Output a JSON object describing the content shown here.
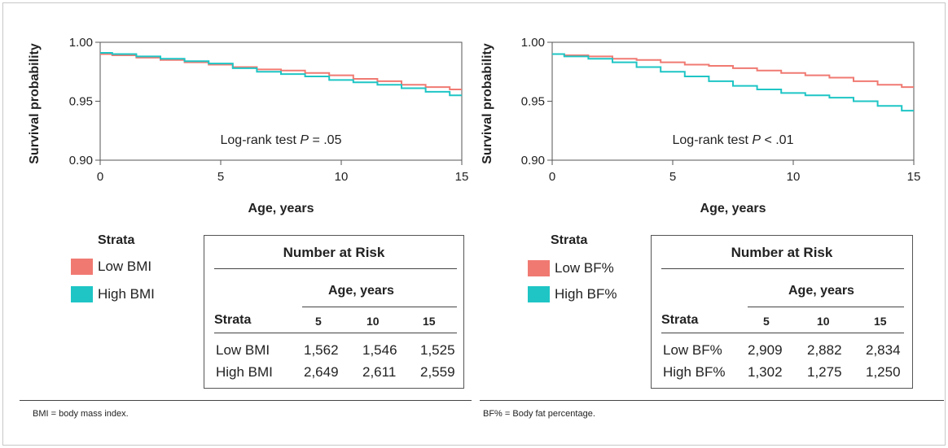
{
  "chart_data": [
    {
      "type": "line",
      "ylabel": "Survival probability",
      "xlabel": "Age, years",
      "xlim": [
        0,
        15
      ],
      "ylim": [
        0.9,
        1.0
      ],
      "xticks": [
        "0",
        "5",
        "10",
        "15"
      ],
      "yticks": [
        "0.90",
        "0.95",
        "1.00"
      ],
      "annotation": "Log-rank test P = .05",
      "series": [
        {
          "name": "Low BMI",
          "color": "#f07a72",
          "x": [
            0,
            1,
            2,
            3,
            4,
            5,
            6,
            7,
            8,
            9,
            10,
            11,
            12,
            13,
            14,
            15
          ],
          "y": [
            0.99,
            0.989,
            0.987,
            0.985,
            0.983,
            0.981,
            0.979,
            0.977,
            0.976,
            0.974,
            0.972,
            0.969,
            0.967,
            0.964,
            0.962,
            0.96
          ]
        },
        {
          "name": "High BMI",
          "color": "#1fc5c5",
          "x": [
            0,
            1,
            2,
            3,
            4,
            5,
            6,
            7,
            8,
            9,
            10,
            11,
            12,
            13,
            14,
            15
          ],
          "y": [
            0.991,
            0.99,
            0.988,
            0.986,
            0.984,
            0.982,
            0.978,
            0.975,
            0.973,
            0.971,
            0.968,
            0.966,
            0.964,
            0.961,
            0.958,
            0.955
          ]
        }
      ]
    },
    {
      "type": "line",
      "ylabel": "Survival probability",
      "xlabel": "Age, years",
      "xlim": [
        0,
        15
      ],
      "ylim": [
        0.9,
        1.0
      ],
      "xticks": [
        "0",
        "5",
        "10",
        "15"
      ],
      "yticks": [
        "0.90",
        "0.95",
        "1.00"
      ],
      "annotation": "Log-rank test P < .01",
      "series": [
        {
          "name": "Low BF%",
          "color": "#f07a72",
          "x": [
            0,
            1,
            2,
            3,
            4,
            5,
            6,
            7,
            8,
            9,
            10,
            11,
            12,
            13,
            14,
            15
          ],
          "y": [
            0.99,
            0.989,
            0.988,
            0.986,
            0.985,
            0.983,
            0.981,
            0.98,
            0.978,
            0.976,
            0.974,
            0.972,
            0.97,
            0.967,
            0.964,
            0.962
          ]
        },
        {
          "name": "High BF%",
          "color": "#1fc5c5",
          "x": [
            0,
            1,
            2,
            3,
            4,
            5,
            6,
            7,
            8,
            9,
            10,
            11,
            12,
            13,
            14,
            15
          ],
          "y": [
            0.99,
            0.988,
            0.986,
            0.983,
            0.979,
            0.975,
            0.971,
            0.967,
            0.963,
            0.96,
            0.957,
            0.955,
            0.953,
            0.95,
            0.946,
            0.942
          ]
        }
      ]
    }
  ],
  "panels": [
    {
      "legend": {
        "title": "Strata",
        "items": [
          "Low BMI",
          "High BMI"
        ]
      },
      "risk_table": {
        "title": "Number at Risk",
        "age_header": "Age, years",
        "strata_header": "Strata",
        "columns": [
          "5",
          "10",
          "15"
        ],
        "rows": [
          {
            "label": "Low BMI",
            "values": [
              "1,562",
              "1,546",
              "1,525"
            ]
          },
          {
            "label": "High BMI",
            "values": [
              "2,649",
              "2,611",
              "2,559"
            ]
          }
        ]
      },
      "footnote": "BMI = body mass index."
    },
    {
      "legend": {
        "title": "Strata",
        "items": [
          "Low BF%",
          "High BF%"
        ]
      },
      "risk_table": {
        "title": "Number at Risk",
        "age_header": "Age, years",
        "strata_header": "Strata",
        "columns": [
          "5",
          "10",
          "15"
        ],
        "rows": [
          {
            "label": "Low BF%",
            "values": [
              "2,909",
              "2,882",
              "2,834"
            ]
          },
          {
            "label": "High BF%",
            "values": [
              "1,302",
              "1,275",
              "1,250"
            ]
          }
        ]
      },
      "footnote": "BF% = Body fat percentage."
    }
  ]
}
